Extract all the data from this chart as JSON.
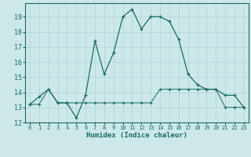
{
  "title": "",
  "xlabel": "Humidex (Indice chaleur)",
  "x": [
    0,
    1,
    2,
    3,
    4,
    5,
    6,
    7,
    8,
    9,
    10,
    11,
    12,
    13,
    14,
    15,
    16,
    17,
    18,
    19,
    20,
    21,
    22,
    23
  ],
  "y_line1": [
    13.2,
    13.7,
    14.2,
    13.3,
    13.3,
    12.3,
    13.8,
    17.4,
    15.2,
    16.6,
    19.0,
    19.5,
    18.2,
    19.0,
    19.0,
    18.7,
    17.5,
    15.2,
    14.5,
    14.2,
    14.2,
    13.8,
    13.8,
    13.0
  ],
  "y_line2": [
    13.2,
    13.2,
    14.2,
    13.3,
    13.3,
    13.3,
    13.3,
    13.3,
    13.3,
    13.3,
    13.3,
    13.3,
    13.3,
    13.3,
    14.2,
    14.2,
    14.2,
    14.2,
    14.2,
    14.2,
    14.2,
    13.0,
    13.0,
    13.0
  ],
  "line_color": "#1a6b5e",
  "bg_color": "#cce8e8",
  "grid_color": "#b0d4d4",
  "ylim_min": 12,
  "ylim_max": 19.9,
  "xlim_min": -0.5,
  "xlim_max": 23.5,
  "yticks": [
    12,
    13,
    14,
    15,
    16,
    17,
    18,
    19
  ],
  "xticks": [
    0,
    1,
    2,
    3,
    4,
    5,
    6,
    7,
    8,
    9,
    10,
    11,
    12,
    13,
    14,
    15,
    16,
    17,
    18,
    19,
    20,
    21,
    22,
    23
  ]
}
